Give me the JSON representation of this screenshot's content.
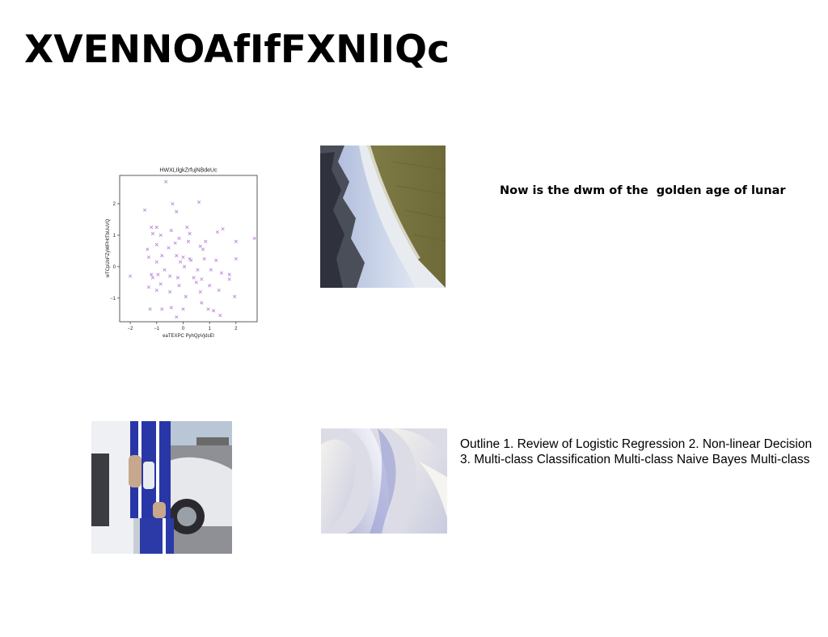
{
  "slide": {
    "title": "XVENNOAfIfFXNlIQc",
    "tagline": "Now is the dwm of the  golden age of lunar",
    "outline_line1": "Outline 1. Review of Logistic Regression 2. Non-linear Decision",
    "outline_line2": "3. Multi-class Classification Multi-class Naive Bayes Multi-class"
  },
  "images": {
    "chart_image": "scatter plot figure",
    "coast_image": "aerial coastline with surf",
    "person_image": "person in blue tracksuit by car",
    "abstract_image": "white abstract folds"
  },
  "chart_data": {
    "type": "scatter",
    "title": "HWXLIlgkZrfujNBdeUc",
    "xlabel": "eaTEXPC PyhQpVjdsEl",
    "ylabel": "wTCpUnFZyWPHtTbUuVQ",
    "xlim": [
      -2.4,
      2.8
    ],
    "ylim": [
      -1.75,
      2.9
    ],
    "xticks": [
      -2,
      -1,
      0,
      1,
      2
    ],
    "yticks": [
      -1,
      0,
      1,
      2
    ],
    "marker": "x",
    "color": "#b77fd6",
    "points": [
      [
        -0.65,
        2.7
      ],
      [
        -0.4,
        2.0
      ],
      [
        0.6,
        2.05
      ],
      [
        -1.45,
        1.8
      ],
      [
        -0.25,
        1.75
      ],
      [
        -1.2,
        1.25
      ],
      [
        -1.0,
        1.25
      ],
      [
        0.15,
        1.25
      ],
      [
        1.5,
        1.2
      ],
      [
        -1.15,
        1.05
      ],
      [
        -0.85,
        1.0
      ],
      [
        -0.45,
        1.15
      ],
      [
        0.25,
        1.05
      ],
      [
        1.3,
        1.1
      ],
      [
        -0.15,
        0.9
      ],
      [
        0.2,
        0.8
      ],
      [
        -1.0,
        0.7
      ],
      [
        -0.3,
        0.75
      ],
      [
        0.65,
        0.65
      ],
      [
        2.0,
        0.8
      ],
      [
        2.7,
        0.9
      ],
      [
        -1.35,
        0.55
      ],
      [
        -0.55,
        0.6
      ],
      [
        0.75,
        0.55
      ],
      [
        -1.3,
        0.3
      ],
      [
        -0.8,
        0.35
      ],
      [
        -0.25,
        0.35
      ],
      [
        0.0,
        0.3
      ],
      [
        0.3,
        0.2
      ],
      [
        0.8,
        0.25
      ],
      [
        1.25,
        0.2
      ],
      [
        2.0,
        0.25
      ],
      [
        -1.0,
        0.15
      ],
      [
        -0.1,
        0.15
      ],
      [
        0.25,
        0.25
      ],
      [
        -0.7,
        -0.1
      ],
      [
        0.05,
        0.0
      ],
      [
        0.55,
        -0.1
      ],
      [
        1.05,
        -0.1
      ],
      [
        -1.2,
        -0.25
      ],
      [
        -0.5,
        -0.3
      ],
      [
        0.4,
        -0.35
      ],
      [
        1.45,
        -0.2
      ],
      [
        1.75,
        -0.25
      ],
      [
        -2.0,
        -0.3
      ],
      [
        -1.15,
        -0.35
      ],
      [
        -0.2,
        -0.35
      ],
      [
        0.7,
        -0.4
      ],
      [
        1.75,
        -0.4
      ],
      [
        -1.3,
        -0.65
      ],
      [
        -0.85,
        -0.55
      ],
      [
        -0.15,
        -0.6
      ],
      [
        0.5,
        -0.5
      ],
      [
        1.0,
        -0.6
      ],
      [
        -1.0,
        -0.75
      ],
      [
        -0.5,
        -0.8
      ],
      [
        0.65,
        -0.8
      ],
      [
        1.35,
        -0.75
      ],
      [
        0.1,
        -0.95
      ],
      [
        0.7,
        -1.15
      ],
      [
        1.95,
        -0.95
      ],
      [
        -1.25,
        -1.35
      ],
      [
        -0.8,
        -1.35
      ],
      [
        -0.45,
        -1.3
      ],
      [
        0.0,
        -1.35
      ],
      [
        0.95,
        -1.35
      ],
      [
        1.15,
        -1.4
      ],
      [
        -0.25,
        -1.6
      ],
      [
        1.4,
        -1.55
      ],
      [
        -0.95,
        -0.25
      ],
      [
        0.85,
        0.8
      ]
    ]
  }
}
